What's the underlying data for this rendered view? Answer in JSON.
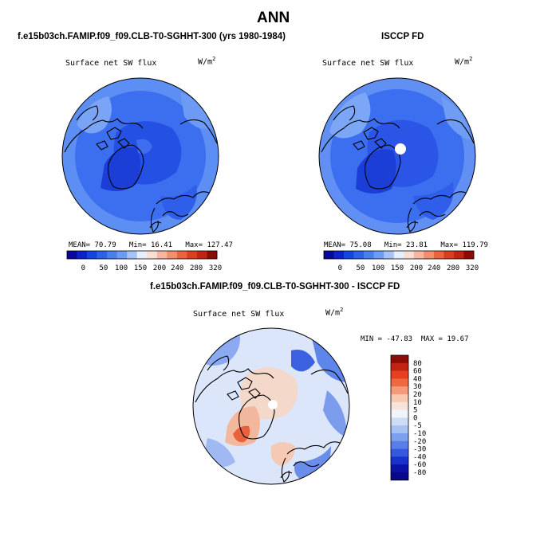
{
  "figure": {
    "title": "ANN",
    "left_header": "f.e15b03ch.FAMIP.f09_f09.CLB-T0-SGHHT-300 (yrs 1980-1984)",
    "right_header": "ISCCP FD",
    "diff_header": "f.e15b03ch.FAMIP.f09_f09.CLB-T0-SGHHT-300 - ISCCP FD"
  },
  "colors": {
    "abs_levels": [
      "#08089a",
      "#0b21c9",
      "#1346e0",
      "#2b62e8",
      "#4a7fee",
      "#6e9cf3",
      "#a5c3f8",
      "#e7efff",
      "#f8dfd5",
      "#f6b59f",
      "#f28d6d",
      "#ea6240",
      "#d8401f",
      "#c22412",
      "#8e0b05"
    ],
    "diff_levels": [
      "#8e0b05",
      "#c22412",
      "#e8401f",
      "#f0683f",
      "#f49a78",
      "#f8c8b0",
      "#f7e3d9",
      "#f2f4fb",
      "#cfdcf6",
      "#a6c1f2",
      "#7e9fee",
      "#587fe9",
      "#3458df",
      "#1731cd",
      "#0a12a8",
      "#08088a"
    ],
    "land": "#000000"
  },
  "chart_data": [
    {
      "type": "heatmap",
      "projection": "north-polar-stereographic",
      "panel": "model",
      "title": "Surface net SW flux",
      "units_base": "W/m",
      "units_exp": "2",
      "stats": {
        "mean_label": "MEAN=",
        "mean": "70.79",
        "min_label": "Min=",
        "min": "16.41",
        "max_label": "Max=",
        "max": "127.47"
      },
      "colorbar_ticks": [
        "0",
        "50",
        "100",
        "150",
        "200",
        "240",
        "280",
        "320"
      ]
    },
    {
      "type": "heatmap",
      "projection": "north-polar-stereographic",
      "panel": "observations",
      "title": "Surface net SW flux",
      "units_base": "W/m",
      "units_exp": "2",
      "stats": {
        "mean_label": "MEAN=",
        "mean": "75.08",
        "min_label": "Min=",
        "min": "23.81",
        "max_label": "Max=",
        "max": "119.79"
      },
      "colorbar_ticks": [
        "0",
        "50",
        "100",
        "150",
        "200",
        "240",
        "280",
        "320"
      ]
    },
    {
      "type": "heatmap",
      "projection": "north-polar-stereographic",
      "panel": "difference",
      "title": "Surface net SW flux",
      "units_base": "W/m",
      "units_exp": "2",
      "stats": {
        "min_label": "MIN =",
        "min": "-47.83",
        "max_label": "MAX =",
        "max": "19.67"
      },
      "colorbar_ticks": [
        "80",
        "60",
        "40",
        "30",
        "20",
        "10",
        "5",
        "0",
        "-5",
        "-10",
        "-20",
        "-30",
        "-40",
        "-60",
        "-80"
      ]
    }
  ]
}
